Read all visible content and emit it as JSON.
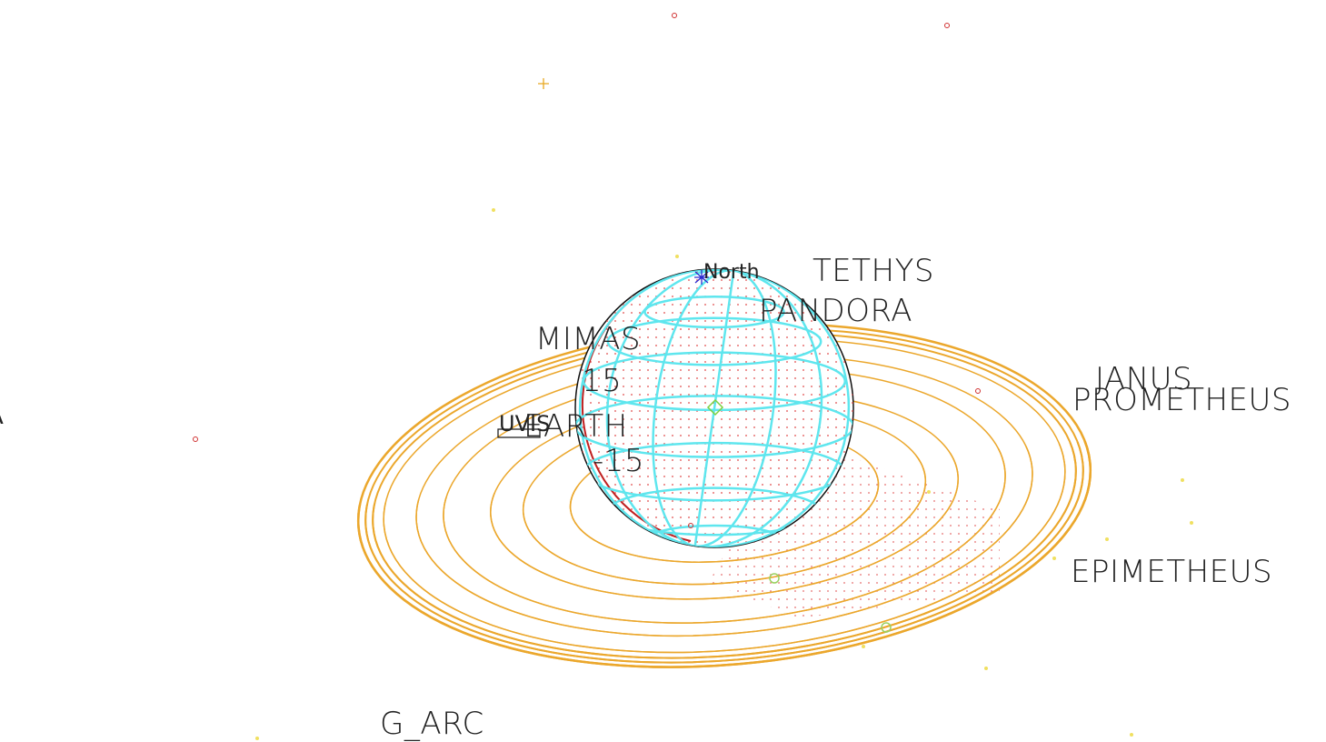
{
  "labels": {
    "north": "North",
    "tethys": "TETHYS",
    "pandora": "PANDORA",
    "mimas": "MIMAS",
    "lat_plus": "15",
    "janus": "JANUS",
    "prometheus": "PROMETHEUS",
    "uvis": "UVIS",
    "earth": "EARTH",
    "lat_minus": "-15",
    "epimetheus": "EPIMETHEUS",
    "g_arc": "G_ARC",
    "edge": "A"
  }
}
